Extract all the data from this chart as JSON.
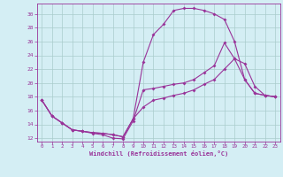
{
  "xlabel": "Windchill (Refroidissement éolien,°C)",
  "bg_color": "#d4eef4",
  "grid_color": "#aacccc",
  "line_color": "#993399",
  "x_ticks": [
    0,
    1,
    2,
    3,
    4,
    5,
    6,
    7,
    8,
    9,
    10,
    11,
    12,
    13,
    14,
    15,
    16,
    17,
    18,
    19,
    20,
    21,
    22,
    23
  ],
  "y_ticks": [
    12,
    14,
    16,
    18,
    20,
    22,
    24,
    26,
    28,
    30
  ],
  "ylim": [
    11.5,
    31.5
  ],
  "xlim": [
    -0.5,
    23.5
  ],
  "line1_x": [
    0,
    1,
    2,
    3,
    4,
    5,
    6,
    7,
    8,
    9,
    10,
    11,
    12,
    13,
    14,
    15,
    16,
    17,
    18,
    19,
    20,
    21,
    22,
    23
  ],
  "line1_y": [
    17.5,
    15.2,
    14.2,
    13.2,
    13.0,
    12.7,
    12.5,
    12.0,
    11.9,
    14.5,
    19.0,
    19.2,
    19.5,
    19.8,
    20.0,
    20.5,
    21.5,
    22.5,
    25.8,
    23.5,
    20.5,
    18.5,
    18.2,
    18.0
  ],
  "line2_x": [
    0,
    1,
    2,
    3,
    4,
    5,
    6,
    7,
    8,
    9,
    10,
    11,
    12,
    13,
    14,
    15,
    16,
    17,
    18,
    19,
    20,
    21,
    22,
    23
  ],
  "line2_y": [
    17.5,
    15.2,
    14.2,
    13.2,
    13.0,
    12.8,
    12.7,
    12.5,
    12.2,
    14.8,
    23.0,
    27.0,
    28.5,
    30.5,
    30.8,
    30.8,
    30.5,
    30.0,
    29.2,
    26.0,
    20.5,
    18.5,
    18.2,
    18.0
  ],
  "line3_x": [
    0,
    1,
    2,
    3,
    4,
    5,
    6,
    7,
    8,
    9,
    10,
    11,
    12,
    13,
    14,
    15,
    16,
    17,
    18,
    19,
    20,
    21,
    22,
    23
  ],
  "line3_y": [
    17.5,
    15.2,
    14.2,
    13.2,
    13.0,
    12.8,
    12.7,
    12.5,
    12.2,
    14.8,
    16.5,
    17.5,
    17.8,
    18.2,
    18.5,
    19.0,
    19.8,
    20.5,
    22.0,
    23.5,
    22.8,
    19.5,
    18.2,
    18.0
  ]
}
